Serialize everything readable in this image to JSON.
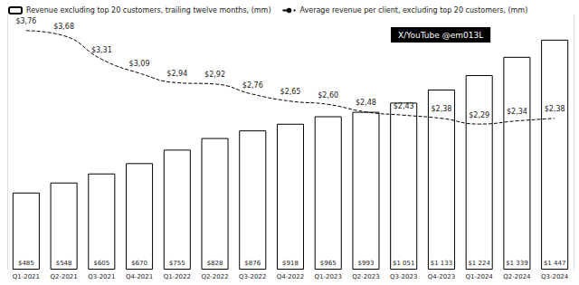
{
  "chart_data": {
    "type": "bar",
    "categories": [
      "Q1-2021",
      "Q2-2021",
      "Q3-2021",
      "Q4-2021",
      "Q1-2022",
      "Q2-2022",
      "Q3-2022",
      "Q4-2022",
      "Q1-2023",
      "Q2-2023",
      "Q3-2023",
      "Q4-2023",
      "Q1-2024",
      "Q2-2024",
      "Q3-2024"
    ],
    "series": [
      {
        "name": "Revenue excluding top 20 customers, trailing twelve months, (mm)",
        "type": "bar",
        "color": "#ffffff",
        "values": [
          485,
          548,
          605,
          670,
          755,
          828,
          876,
          918,
          965,
          993,
          1051,
          1133,
          1224,
          1339,
          1447
        ],
        "value_labels": [
          "$485",
          "$548",
          "$605",
          "$670",
          "$755",
          "$828",
          "$876",
          "$918",
          "$965",
          "$993",
          "$1 051",
          "$1 133",
          "$1 224",
          "$1 339",
          "$1 447"
        ]
      },
      {
        "name": "Average revenue per client, excluding top 20 customers, (mm)",
        "type": "line",
        "axis": "y2",
        "color": "#000000",
        "line_style": "dashed",
        "values": [
          3.76,
          3.68,
          3.31,
          3.09,
          2.94,
          2.92,
          2.76,
          2.65,
          2.6,
          2.48,
          2.43,
          2.38,
          2.29,
          2.34,
          2.38
        ],
        "value_labels": [
          "$3,76",
          "$3,68",
          "$3,31",
          "$3,09",
          "$2,94",
          "$2,92",
          "$2,76",
          "$2,65",
          "$2,60",
          "$2,48",
          "$2,43",
          "$2,38",
          "$2,29",
          "$2,34",
          "$2,38"
        ]
      }
    ],
    "ylim": [
      0,
      1600
    ],
    "y2lim": [
      0,
      4
    ],
    "tick_labels": "x",
    "grid": false,
    "legend": "top-left",
    "data_labels": true,
    "annotations": [
      "X/YouTube @em013L"
    ]
  }
}
